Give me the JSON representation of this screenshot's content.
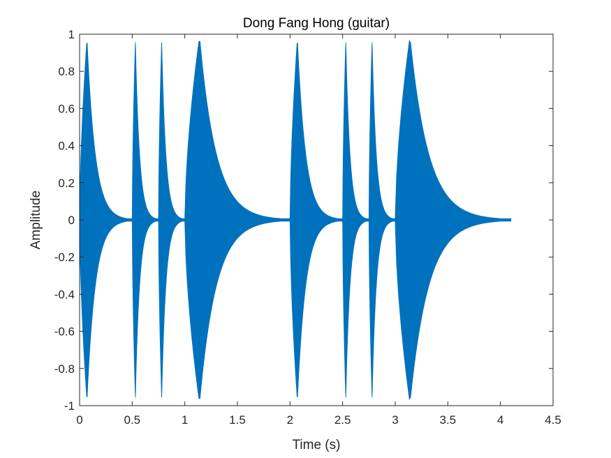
{
  "chart_data": {
    "type": "area",
    "title": "Dong Fang Hong (guitar)",
    "xlabel": "Time (s)",
    "ylabel": "Amplitude",
    "xlim": [
      0,
      4.5
    ],
    "ylim": [
      -1,
      1
    ],
    "xticks": [
      "0",
      "0.5",
      "1",
      "1.5",
      "2",
      "2.5",
      "3",
      "3.5",
      "4",
      "4.5"
    ],
    "yticks": [
      "-1",
      "-0.8",
      "-0.6",
      "-0.4",
      "-0.2",
      "0",
      "0.2",
      "0.4",
      "0.6",
      "0.8",
      "1"
    ],
    "grid": false,
    "color": "#0072BD",
    "notes": [
      {
        "start": 0.0,
        "peak_time": 0.07,
        "peak": 0.98,
        "end": 0.5
      },
      {
        "start": 0.5,
        "peak_time": 0.53,
        "peak": 0.97,
        "end": 0.75
      },
      {
        "start": 0.75,
        "peak_time": 0.78,
        "peak": 0.97,
        "end": 1.0
      },
      {
        "start": 1.0,
        "peak_time": 1.14,
        "peak": 0.99,
        "end": 2.0
      },
      {
        "start": 2.0,
        "peak_time": 2.07,
        "peak": 0.98,
        "end": 2.5
      },
      {
        "start": 2.5,
        "peak_time": 2.53,
        "peak": 0.97,
        "end": 2.75
      },
      {
        "start": 2.75,
        "peak_time": 2.78,
        "peak": 0.97,
        "end": 3.0
      },
      {
        "start": 3.0,
        "peak_time": 3.14,
        "peak": 0.99,
        "end": 4.1
      }
    ]
  }
}
